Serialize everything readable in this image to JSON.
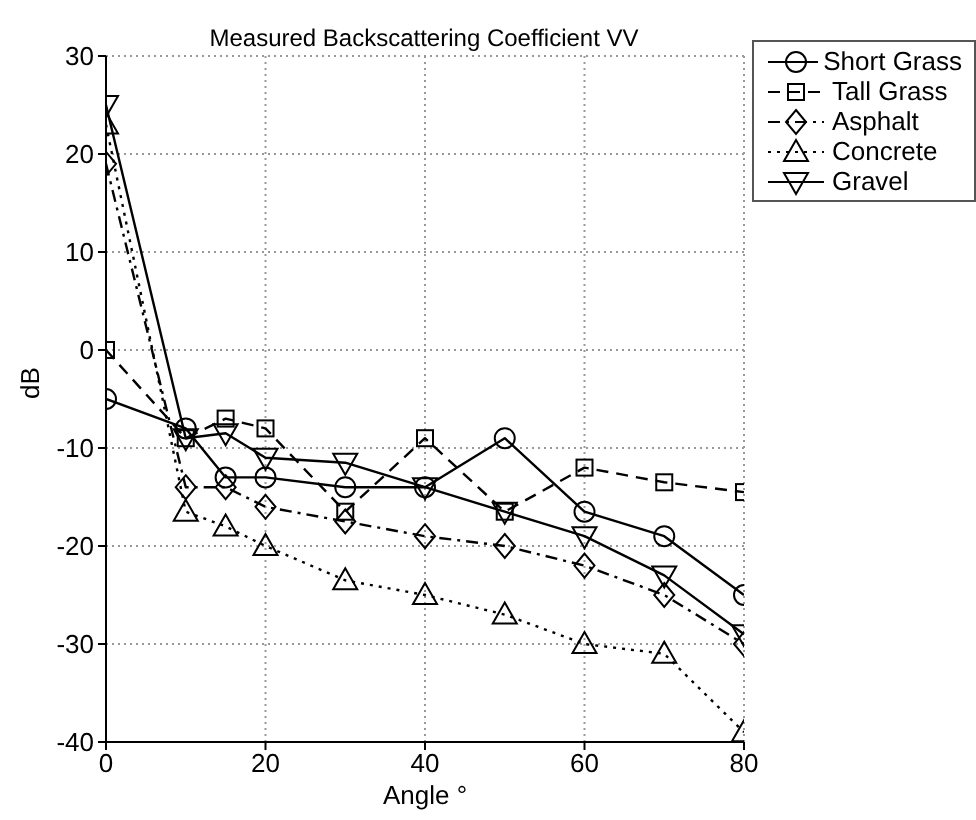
{
  "chart_data": {
    "type": "line",
    "title": "Measured Backscattering Coefficient VV",
    "xlabel": "Angle °",
    "ylabel": "dB",
    "x": [
      0,
      10,
      15,
      20,
      30,
      40,
      50,
      60,
      70,
      80
    ],
    "series": [
      {
        "name": "Short Grass",
        "color": "#000000",
        "marker": "circle",
        "line_style": "solid",
        "values": [
          -5,
          -8,
          -13,
          -13,
          -14,
          -14,
          -9,
          -16.5,
          -19,
          -25
        ]
      },
      {
        "name": "Tall Grass",
        "color": "#000000",
        "marker": "square",
        "line_style": "dashed",
        "values": [
          0,
          -9,
          -7,
          -8,
          -16.5,
          -9,
          -16.5,
          -12,
          -13.5,
          -14.5
        ]
      },
      {
        "name": "Asphalt",
        "color": "#000000",
        "marker": "diamond",
        "line_style": "dashdot",
        "values": [
          19,
          -14,
          -14,
          -16,
          -17.5,
          -19,
          -20,
          -22,
          -25,
          -30
        ]
      },
      {
        "name": "Concrete",
        "color": "#000000",
        "marker": "triangle",
        "line_style": "dotted",
        "values": [
          23,
          -16.5,
          -18,
          -20,
          -23.5,
          -25,
          -27,
          -30,
          -31,
          -39
        ]
      },
      {
        "name": "Gravel",
        "color": "#000000",
        "marker": "triangle-down",
        "line_style": "solid",
        "values": [
          25,
          -9,
          -8.5,
          -11,
          -11.5,
          -14,
          -16.5,
          -19,
          -23,
          -29
        ]
      }
    ],
    "xlim": [
      0,
      80
    ],
    "xticks": [
      0,
      20,
      40,
      60,
      80
    ],
    "ylim": [
      -40,
      30
    ],
    "yticks": [
      -40,
      -30,
      -20,
      -10,
      0,
      10,
      20,
      30
    ],
    "grid": true,
    "legend": "top right"
  }
}
